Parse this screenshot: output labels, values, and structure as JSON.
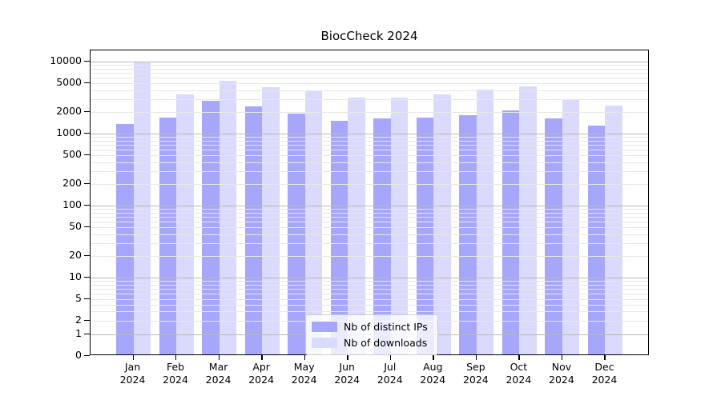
{
  "title": "BiocCheck 2024",
  "colors": {
    "distinct_ips_bar": "#a6a6fa",
    "downloads_bar": "#dadafc",
    "axis_frame": "#000000",
    "major_gridline": "#b9b9b9",
    "minor_gridline": "#e7e7e7",
    "legend_border": "#cccccc"
  },
  "legend": {
    "items": [
      {
        "label": "Nb of distinct IPs",
        "swatch": "#a6a6fa"
      },
      {
        "label": "Nb of downloads",
        "swatch": "#dadafc"
      }
    ]
  },
  "chart_data": {
    "type": "bar",
    "title": "BiocCheck 2024",
    "categories": [
      "Jan",
      "Feb",
      "Mar",
      "Apr",
      "May",
      "Jun",
      "Jul",
      "Aug",
      "Sep",
      "Oct",
      "Nov",
      "Dec"
    ],
    "category_year": "2024",
    "series": [
      {
        "name": "Nb of distinct IPs",
        "color": "#a6a6fa",
        "values": [
          1300,
          1580,
          2700,
          2250,
          1800,
          1430,
          1550,
          1580,
          1700,
          2000,
          1550,
          1230
        ]
      },
      {
        "name": "Nb of downloads",
        "color": "#dadafc",
        "values": [
          9200,
          3300,
          5100,
          4200,
          3800,
          3000,
          3000,
          3350,
          3850,
          4250,
          2800,
          2300
        ]
      }
    ],
    "xlabel": "",
    "ylabel": "",
    "yscale": "symlog",
    "yticks": [
      0,
      1,
      2,
      5,
      10,
      20,
      50,
      100,
      200,
      500,
      1000,
      2000,
      5000,
      10000
    ],
    "ylim": [
      0,
      14000
    ],
    "grid": true,
    "legend_position": "lower-center"
  }
}
